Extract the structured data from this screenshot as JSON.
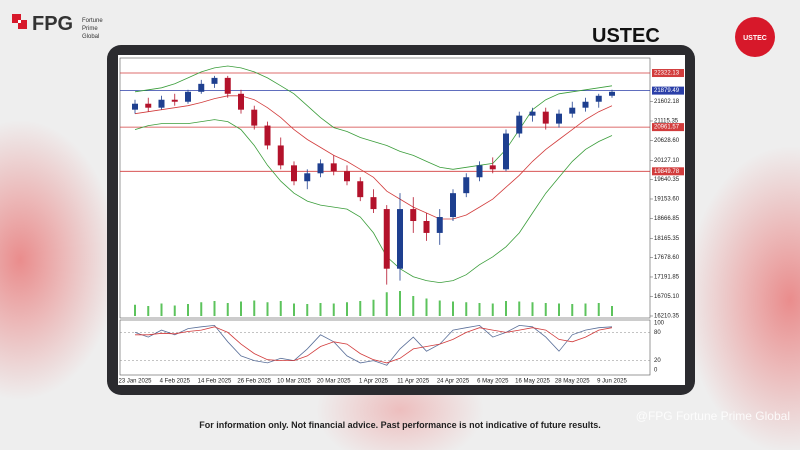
{
  "header": {
    "brand": "FPG",
    "tagline": [
      "Fortune",
      "Prime",
      "Global"
    ],
    "badge": "USTEC"
  },
  "footer": {
    "disclaimer": "For information only. Not financial advice. Past performance is not indicative of future results.",
    "watermark": "@FPG Fortune Prime Global"
  },
  "chart_data": {
    "type": "candlestick",
    "title": "USTEC",
    "categories": [
      "23 Jan 2025",
      null,
      null,
      "4 Feb 2025",
      null,
      null,
      "14 Feb 2025",
      null,
      null,
      "26 Feb 2025",
      null,
      null,
      "10 Mar 2025",
      null,
      null,
      "20 Mar 2025",
      null,
      null,
      "1 Apr 2025",
      null,
      null,
      "11 Apr 2025",
      null,
      null,
      "24 Apr 2025",
      null,
      null,
      "6 May 2025",
      null,
      null,
      "16 May 2025",
      null,
      null,
      "28 May 2025",
      null,
      null,
      "9 Jun 2025"
    ],
    "open": [
      21400,
      21550,
      21450,
      21650,
      21600,
      21850,
      22050,
      22200,
      21800,
      21400,
      21000,
      20500,
      20000,
      19600,
      19800,
      20050,
      19850,
      19600,
      19200,
      18900,
      17400,
      18900,
      18600,
      18300,
      18700,
      19300,
      19700,
      20000,
      19900,
      20800,
      21250,
      21350,
      21050,
      21300,
      21450,
      21600,
      21750
    ],
    "high": [
      21650,
      21700,
      21750,
      21800,
      21900,
      22150,
      22250,
      22250,
      21900,
      21500,
      21100,
      20700,
      20100,
      19900,
      20150,
      20250,
      20000,
      19700,
      19400,
      19000,
      19300,
      19200,
      18800,
      18900,
      19400,
      19800,
      20100,
      20200,
      20900,
      21350,
      21450,
      21450,
      21400,
      21600,
      21700,
      21800,
      21900
    ],
    "low": [
      21300,
      21350,
      21400,
      21500,
      21550,
      21800,
      21950,
      21700,
      21300,
      20900,
      20400,
      19900,
      19500,
      19400,
      19700,
      19750,
      19500,
      19100,
      18800,
      17000,
      17100,
      18300,
      18100,
      18000,
      18600,
      19200,
      19600,
      19800,
      19850,
      20700,
      21100,
      20900,
      20950,
      21200,
      21350,
      21450,
      21700
    ],
    "close": [
      21550,
      21450,
      21650,
      21600,
      21850,
      22050,
      22200,
      21800,
      21400,
      21000,
      20500,
      20000,
      19600,
      19800,
      20050,
      19850,
      19600,
      19200,
      18900,
      17400,
      18900,
      18600,
      18300,
      18700,
      19300,
      19700,
      20000,
      19900,
      20800,
      21250,
      21350,
      21050,
      21300,
      21450,
      21600,
      21750,
      21850
    ],
    "ma": [
      21300,
      21350,
      21400,
      21450,
      21500,
      21580,
      21680,
      21750,
      21750,
      21650,
      21450,
      21200,
      20900,
      20650,
      20450,
      20250,
      20100,
      19900,
      19700,
      19350,
      19150,
      18950,
      18800,
      18650,
      18650,
      18750,
      18950,
      19150,
      19450,
      19750,
      20100,
      20400,
      20650,
      20900,
      21150,
      21350,
      21500
    ],
    "upper": [
      21850,
      21900,
      21950,
      22050,
      22200,
      22350,
      22450,
      22500,
      22450,
      22350,
      22200,
      22000,
      21800,
      21500,
      21200,
      20950,
      20850,
      20700,
      20600,
      20500,
      20350,
      20250,
      20100,
      19950,
      19900,
      19950,
      20000,
      20050,
      20400,
      20900,
      21400,
      21650,
      21800,
      21850,
      21900,
      21950,
      22000
    ],
    "lower": [
      20900,
      21000,
      21050,
      21050,
      21050,
      21100,
      21150,
      21100,
      20900,
      20500,
      20000,
      19600,
      19300,
      19100,
      19000,
      18950,
      18900,
      18700,
      18300,
      17700,
      17400,
      17200,
      17100,
      17050,
      17100,
      17250,
      17500,
      17700,
      17950,
      18300,
      18800,
      19300,
      19700,
      20100,
      20400,
      20600,
      20750
    ],
    "volume": [
      45,
      40,
      50,
      42,
      48,
      55,
      60,
      52,
      58,
      62,
      55,
      60,
      50,
      48,
      52,
      50,
      55,
      60,
      65,
      95,
      100,
      80,
      70,
      62,
      58,
      55,
      52,
      50,
      60,
      58,
      55,
      52,
      50,
      48,
      50,
      52,
      40
    ],
    "stoch_k": [
      80,
      70,
      85,
      75,
      88,
      92,
      95,
      60,
      30,
      20,
      15,
      25,
      20,
      45,
      75,
      60,
      30,
      15,
      20,
      10,
      45,
      70,
      40,
      55,
      85,
      90,
      95,
      70,
      80,
      95,
      92,
      70,
      40,
      75,
      85,
      90,
      92
    ],
    "stoch_d": [
      75,
      75,
      78,
      77,
      82,
      85,
      92,
      80,
      55,
      35,
      22,
      20,
      20,
      30,
      50,
      60,
      55,
      35,
      22,
      15,
      25,
      45,
      50,
      55,
      65,
      80,
      90,
      85,
      80,
      85,
      90,
      85,
      65,
      60,
      70,
      85,
      90
    ],
    "up_color": "#1e3f8f",
    "down_color": "#b3122b",
    "band_color": "#3a9d3a",
    "ma_color": "#d23c3c",
    "volume_color": "#5cc35c",
    "k_color": "#5a6f99",
    "d_color": "#d23c3c",
    "ylim": [
      16160,
      22700
    ],
    "yticks": [
      21602.18,
      21115.35,
      {
        "value": 20628.6,
        "label": "20628.60"
      },
      {
        "value": 20127.1,
        "label": "20127.10"
      },
      19640.35,
      {
        "value": 19153.6,
        "label": "19153.60"
      },
      18666.85,
      18165.35,
      {
        "value": 17678.6,
        "label": "17678.60"
      },
      17191.85,
      {
        "value": 16705.1,
        "label": "16705.10"
      },
      16210.35
    ],
    "levels": [
      {
        "value": 22322.13,
        "color": "#d23c3c"
      },
      {
        "value": 21879.49,
        "color": "#2b3fa8"
      },
      {
        "value": 20961.57,
        "color": "#d23c3c"
      },
      {
        "value": 19849.78,
        "color": "#d23c3c"
      }
    ],
    "stoch_ylim": [
      0,
      100
    ],
    "stoch_yticks": [
      100,
      80,
      20,
      0
    ]
  }
}
